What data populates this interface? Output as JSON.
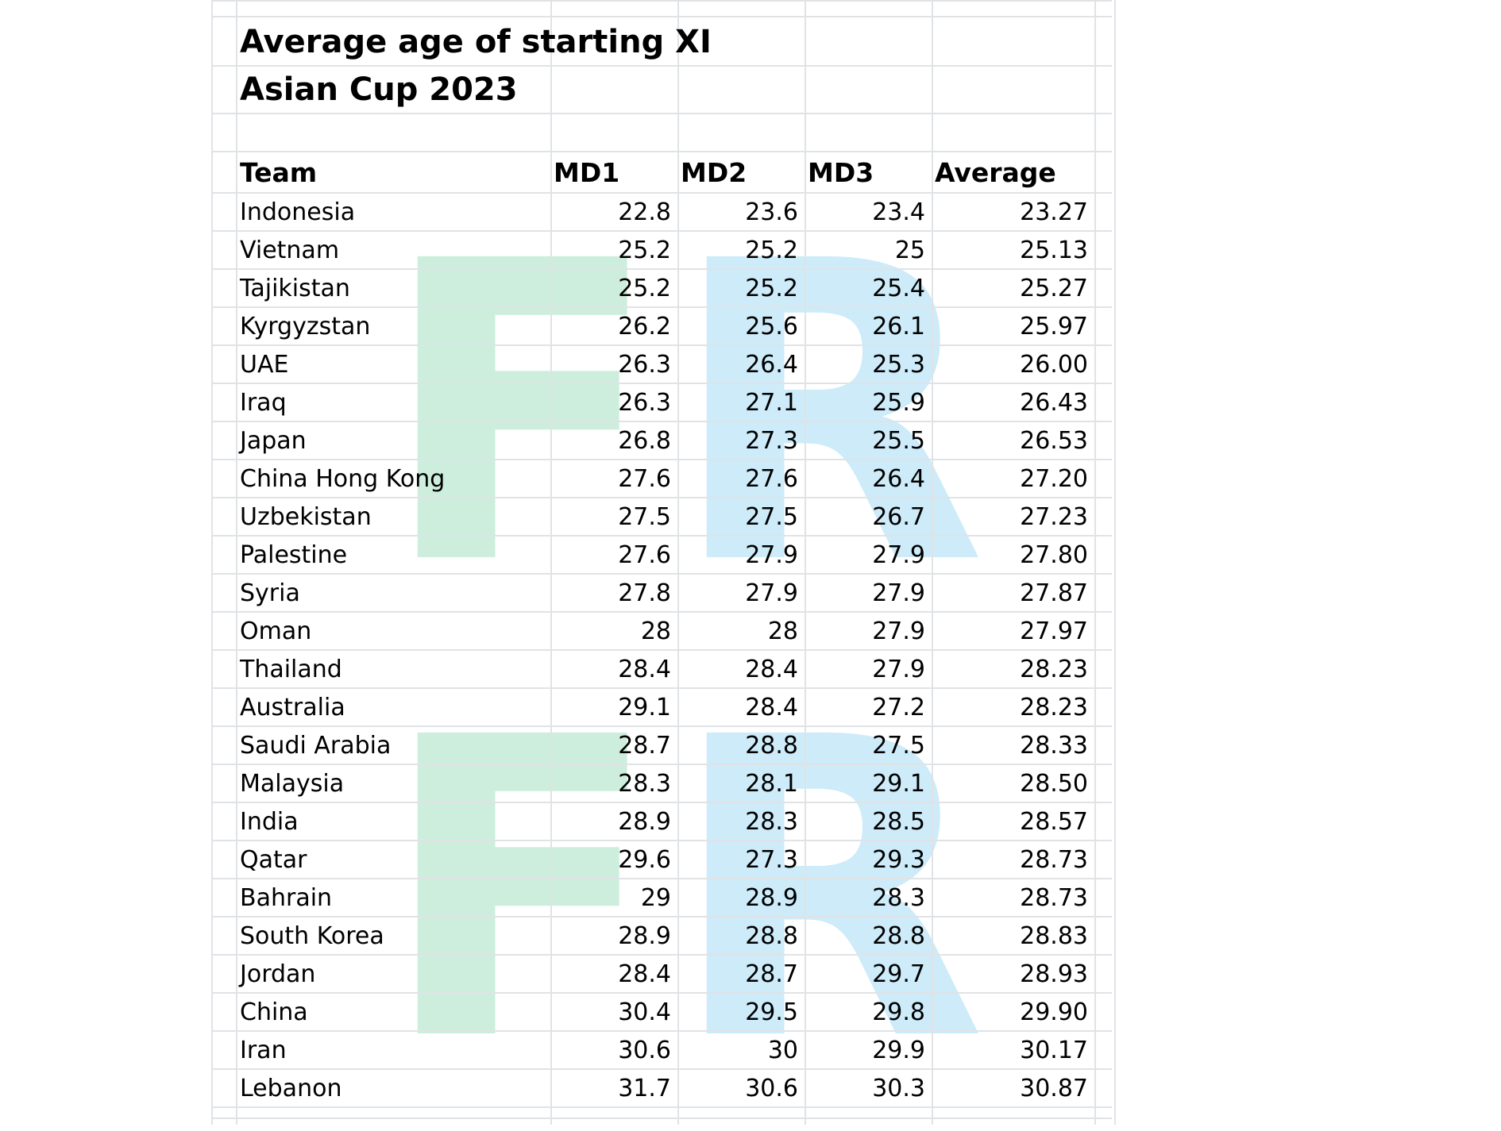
{
  "title_line1": "Average age of starting XI",
  "title_line2": "Asian Cup 2023",
  "watermark": [
    "F",
    "R",
    "F",
    "R"
  ],
  "colors": {
    "grid": "#e0e3e6",
    "watermark_f": "#cdeedd",
    "watermark_r": "#cdebf9"
  },
  "headers": {
    "team": "Team",
    "md1": "MD1",
    "md2": "MD2",
    "md3": "MD3",
    "average": "Average"
  },
  "rows": [
    {
      "team": "Indonesia",
      "md1": "22.8",
      "md2": "23.6",
      "md3": "23.4",
      "average": "23.27"
    },
    {
      "team": "Vietnam",
      "md1": "25.2",
      "md2": "25.2",
      "md3": "25",
      "average": "25.13"
    },
    {
      "team": "Tajikistan",
      "md1": "25.2",
      "md2": "25.2",
      "md3": "25.4",
      "average": "25.27"
    },
    {
      "team": "Kyrgyzstan",
      "md1": "26.2",
      "md2": "25.6",
      "md3": "26.1",
      "average": "25.97"
    },
    {
      "team": "UAE",
      "md1": "26.3",
      "md2": "26.4",
      "md3": "25.3",
      "average": "26.00"
    },
    {
      "team": "Iraq",
      "md1": "26.3",
      "md2": "27.1",
      "md3": "25.9",
      "average": "26.43"
    },
    {
      "team": "Japan",
      "md1": "26.8",
      "md2": "27.3",
      "md3": "25.5",
      "average": "26.53"
    },
    {
      "team": "China Hong Kong",
      "md1": "27.6",
      "md2": "27.6",
      "md3": "26.4",
      "average": "27.20"
    },
    {
      "team": "Uzbekistan",
      "md1": "27.5",
      "md2": "27.5",
      "md3": "26.7",
      "average": "27.23"
    },
    {
      "team": "Palestine",
      "md1": "27.6",
      "md2": "27.9",
      "md3": "27.9",
      "average": "27.80"
    },
    {
      "team": "Syria",
      "md1": "27.8",
      "md2": "27.9",
      "md3": "27.9",
      "average": "27.87"
    },
    {
      "team": "Oman",
      "md1": "28",
      "md2": "28",
      "md3": "27.9",
      "average": "27.97"
    },
    {
      "team": "Thailand",
      "md1": "28.4",
      "md2": "28.4",
      "md3": "27.9",
      "average": "28.23"
    },
    {
      "team": "Australia",
      "md1": "29.1",
      "md2": "28.4",
      "md3": "27.2",
      "average": "28.23"
    },
    {
      "team": "Saudi Arabia",
      "md1": "28.7",
      "md2": "28.8",
      "md3": "27.5",
      "average": "28.33"
    },
    {
      "team": "Malaysia",
      "md1": "28.3",
      "md2": "28.1",
      "md3": "29.1",
      "average": "28.50"
    },
    {
      "team": "India",
      "md1": "28.9",
      "md2": "28.3",
      "md3": "28.5",
      "average": "28.57"
    },
    {
      "team": "Qatar",
      "md1": "29.6",
      "md2": "27.3",
      "md3": "29.3",
      "average": "28.73"
    },
    {
      "team": "Bahrain",
      "md1": "29",
      "md2": "28.9",
      "md3": "28.3",
      "average": "28.73"
    },
    {
      "team": "South Korea",
      "md1": "28.9",
      "md2": "28.8",
      "md3": "28.8",
      "average": "28.83"
    },
    {
      "team": "Jordan",
      "md1": "28.4",
      "md2": "28.7",
      "md3": "29.7",
      "average": "28.93"
    },
    {
      "team": "China",
      "md1": "30.4",
      "md2": "29.5",
      "md3": "29.8",
      "average": "29.90"
    },
    {
      "team": "Iran",
      "md1": "30.6",
      "md2": "30",
      "md3": "29.9",
      "average": "30.17"
    },
    {
      "team": "Lebanon",
      "md1": "31.7",
      "md2": "30.6",
      "md3": "30.3",
      "average": "30.87"
    }
  ]
}
